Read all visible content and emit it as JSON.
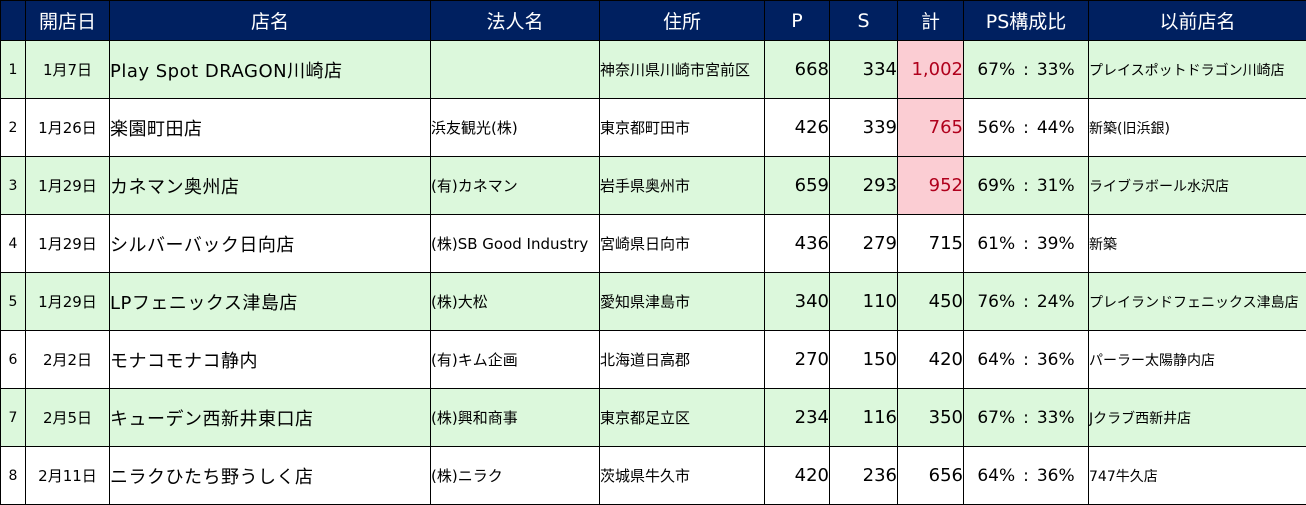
{
  "headers": {
    "no": "",
    "date": "開店日",
    "name": "店名",
    "corp": "法人名",
    "addr": "住所",
    "p": "P",
    "s": "S",
    "total": "計",
    "ratio": "PS構成比",
    "prev": "以前店名"
  },
  "rows": [
    {
      "no": "1",
      "date": "1月7日",
      "name": "Play Spot DRAGON川崎店",
      "corp": "",
      "addr": "神奈川県川崎市宮前区",
      "p": "668",
      "s": "334",
      "total": "1,002",
      "p_ratio": "67%",
      "sep": ":",
      "s_ratio": "33%",
      "prev": "プレイスポットドラゴン川崎店",
      "highlight": true
    },
    {
      "no": "2",
      "date": "1月26日",
      "name": "楽園町田店",
      "corp": "浜友観光(株)",
      "addr": "東京都町田市",
      "p": "426",
      "s": "339",
      "total": "765",
      "p_ratio": "56%",
      "sep": ":",
      "s_ratio": "44%",
      "prev": "新築(旧浜銀)",
      "highlight": true
    },
    {
      "no": "3",
      "date": "1月29日",
      "name": "カネマン奥州店",
      "corp": "(有)カネマン",
      "addr": "岩手県奥州市",
      "p": "659",
      "s": "293",
      "total": "952",
      "p_ratio": "69%",
      "sep": ":",
      "s_ratio": "31%",
      "prev": "ライブラボール水沢店",
      "highlight": true
    },
    {
      "no": "4",
      "date": "1月29日",
      "name": "シルバーバック日向店",
      "corp": "(株)SB Good Industry",
      "addr": "宮崎県日向市",
      "p": "436",
      "s": "279",
      "total": "715",
      "p_ratio": "61%",
      "sep": ":",
      "s_ratio": "39%",
      "prev": "新築",
      "highlight": false
    },
    {
      "no": "5",
      "date": "1月29日",
      "name": "LPフェニックス津島店",
      "corp": "(株)大松",
      "addr": "愛知県津島市",
      "p": "340",
      "s": "110",
      "total": "450",
      "p_ratio": "76%",
      "sep": ":",
      "s_ratio": "24%",
      "prev": "プレイランドフェニックス津島店",
      "highlight": false
    },
    {
      "no": "6",
      "date": "2月2日",
      "name": "モナコモナコ静内",
      "corp": "(有)キム企画",
      "addr": "北海道日高郡",
      "p": "270",
      "s": "150",
      "total": "420",
      "p_ratio": "64%",
      "sep": ":",
      "s_ratio": "36%",
      "prev": "パーラー太陽静内店",
      "highlight": false
    },
    {
      "no": "7",
      "date": "2月5日",
      "name": "キューデン西新井東口店",
      "corp": "(株)興和商事",
      "addr": "東京都足立区",
      "p": "234",
      "s": "116",
      "total": "350",
      "p_ratio": "67%",
      "sep": ":",
      "s_ratio": "33%",
      "prev": "Jクラブ西新井店",
      "highlight": false
    },
    {
      "no": "8",
      "date": "2月11日",
      "name": "ニラクひたち野うしく店",
      "corp": "(株)ニラク",
      "addr": "茨城県牛久市",
      "p": "420",
      "s": "236",
      "total": "656",
      "p_ratio": "64%",
      "sep": ":",
      "s_ratio": "36%",
      "prev": "747牛久店",
      "highlight": false
    }
  ],
  "colors": {
    "header_bg": "#002060",
    "row_alt_bg": "#dcf8dc",
    "highlight_bg": "#fbcdd3",
    "highlight_text": "#b0001c"
  }
}
